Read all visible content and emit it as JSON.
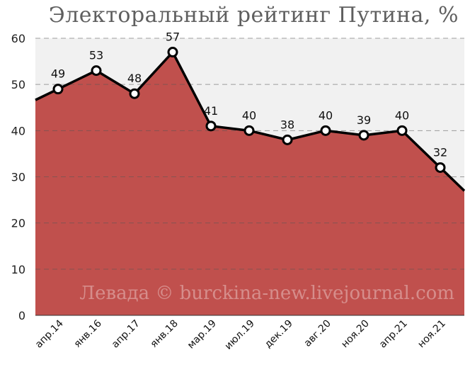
{
  "chart_data": {
    "type": "area",
    "title": "Электоральный рейтинг Путина, %",
    "categories": [
      "апр.14",
      "янв.16",
      "апр.17",
      "янв.18",
      "мар.19",
      "июл.19",
      "дек.19",
      "авг.20",
      "ноя.20",
      "апр.21",
      "ноя.21"
    ],
    "values": [
      49,
      53,
      48,
      57,
      41,
      40,
      38,
      40,
      39,
      40,
      32
    ],
    "data_labels": [
      "49",
      "53",
      "48",
      "57",
      "41",
      "40",
      "38",
      "40",
      "39",
      "40",
      "32"
    ],
    "y_ticks": [
      "0",
      "10",
      "20",
      "30",
      "40",
      "50",
      "60"
    ],
    "ylim": [
      0,
      60
    ],
    "grid": true,
    "watermark": "Левада © burckina-new.livejournal.com",
    "colors": {
      "area": "#c0504d",
      "line": "#000000",
      "marker_fill": "#ffffff",
      "plot_background": "#f1f1f1",
      "grid": "#555555"
    }
  }
}
